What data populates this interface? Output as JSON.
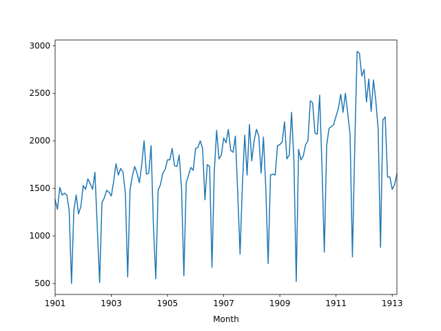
{
  "chart_data": {
    "type": "line",
    "title": "",
    "xlabel": "Month",
    "ylabel": "",
    "grid": false,
    "legend": "none",
    "color": "#1f77b4",
    "xlim": [
      "1901-01",
      "1913-03"
    ],
    "ylim": [
      385,
      3060
    ],
    "x_ticks": [
      "1901",
      "1903",
      "1905",
      "1907",
      "1909",
      "1911",
      "1913"
    ],
    "y_ticks": [
      500,
      1000,
      1500,
      2000,
      2500,
      3000
    ],
    "x_start": "1901-01",
    "series": [
      {
        "name": "",
        "values": [
          1380,
          1280,
          1510,
          1430,
          1450,
          1430,
          1270,
          500,
          1270,
          1430,
          1230,
          1310,
          1530,
          1490,
          1600,
          1550,
          1490,
          1670,
          1100,
          510,
          1350,
          1400,
          1480,
          1460,
          1420,
          1570,
          1760,
          1640,
          1710,
          1670,
          1450,
          570,
          1480,
          1630,
          1730,
          1660,
          1560,
          1750,
          2000,
          1650,
          1660,
          1950,
          1100,
          550,
          1480,
          1540,
          1660,
          1700,
          1800,
          1800,
          1920,
          1740,
          1730,
          1850,
          1500,
          580,
          1560,
          1640,
          1720,
          1690,
          1920,
          1930,
          2000,
          1920,
          1380,
          1750,
          1730,
          670,
          1680,
          2110,
          1810,
          1850,
          2030,
          1980,
          2120,
          1900,
          1880,
          2050,
          1450,
          810,
          1540,
          2060,
          1640,
          2170,
          1790,
          2000,
          2120,
          2050,
          1660,
          2040,
          1500,
          710,
          1640,
          1650,
          1640,
          1950,
          1960,
          1990,
          2200,
          1810,
          1850,
          2300,
          1800,
          520,
          1910,
          1800,
          1840,
          1960,
          2000,
          2420,
          2400,
          2080,
          2070,
          2480,
          1730,
          830,
          1950,
          2130,
          2150,
          2170,
          2260,
          2340,
          2490,
          2300,
          2500,
          2290,
          2070,
          780,
          1950,
          2940,
          2920,
          2680,
          2750,
          2410,
          2650,
          2310,
          2640,
          2420,
          2120,
          880,
          2220,
          2250,
          1620,
          1620,
          1490,
          1540,
          1650
        ]
      }
    ]
  }
}
